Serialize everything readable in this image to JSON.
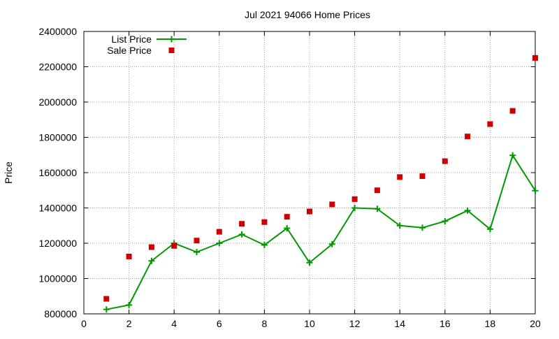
{
  "chart_data": {
    "type": "line",
    "title": "Jul 2021 94066 Home Prices",
    "xlabel": "",
    "ylabel": "Price",
    "xlim": [
      0,
      20
    ],
    "ylim": [
      800000,
      2400000
    ],
    "x_ticks": [
      0,
      2,
      4,
      6,
      8,
      10,
      12,
      14,
      16,
      18,
      20
    ],
    "y_ticks": [
      800000,
      1000000,
      1200000,
      1400000,
      1600000,
      1800000,
      2000000,
      2200000,
      2400000
    ],
    "grid": true,
    "legend_position": "top-left",
    "x": [
      1,
      2,
      3,
      4,
      5,
      6,
      7,
      8,
      9,
      10,
      11,
      12,
      13,
      14,
      15,
      16,
      17,
      18,
      19,
      20
    ],
    "series": [
      {
        "name": "List Price",
        "style": "line-plus",
        "color": "#009900",
        "values": [
          825000,
          850000,
          1100000,
          1200000,
          1150000,
          1200000,
          1250000,
          1190000,
          1285000,
          1090000,
          1195000,
          1400000,
          1395000,
          1300000,
          1288000,
          1325000,
          1385000,
          1280000,
          1698000,
          1498000
        ]
      },
      {
        "name": "Sale Price",
        "style": "square-points",
        "color": "#cc0000",
        "values": [
          885000,
          1125000,
          1178000,
          1185000,
          1215000,
          1265000,
          1310000,
          1320000,
          1350000,
          1380000,
          1420000,
          1450000,
          1500000,
          1575000,
          1580000,
          1665000,
          1805000,
          1875000,
          1950000,
          2250000
        ]
      }
    ]
  }
}
